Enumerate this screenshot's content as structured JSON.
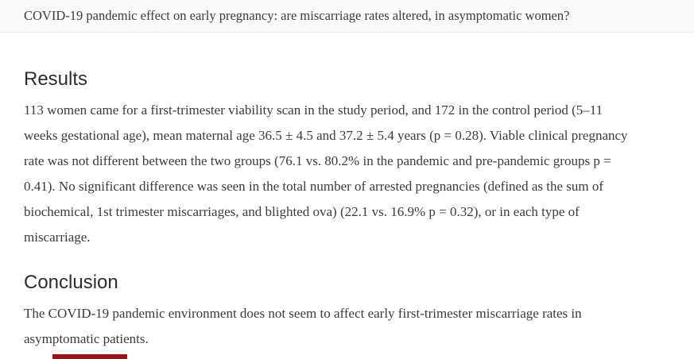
{
  "header": {
    "title": "COVID-19 pandemic effect on early pregnancy: are miscarriage rates altered, in asymptomatic women?"
  },
  "sections": [
    {
      "heading": "Results",
      "body": "113 women came for a first-trimester viability scan in the study period, and 172 in the control period (5–11 weeks gestational age), mean maternal age 36.5 ± 4.5 and 37.2 ± 5.4 years (p = 0.28). Viable clinical pregnancy rate was not different between the two groups (76.1 vs. 80.2% in the pandemic and pre-pandemic groups p = 0.41). No significant difference was seen in the total number of arrested pregnancies (defined as the sum of biochemical, 1st trimester miscarriages, and blighted ova) (22.1 vs. 16.9% p = 0.32), or in each type of miscarriage."
    },
    {
      "heading": "Conclusion",
      "body": "The COVID-19 pandemic environment does not seem to affect early first-trimester miscarriage rates in asymptomatic patients."
    }
  ],
  "colors": {
    "header_background": "#fafafa",
    "body_text": "#3b3b3b",
    "heading_text": "#2d2d2d",
    "accent_partial_element": "#991418"
  }
}
